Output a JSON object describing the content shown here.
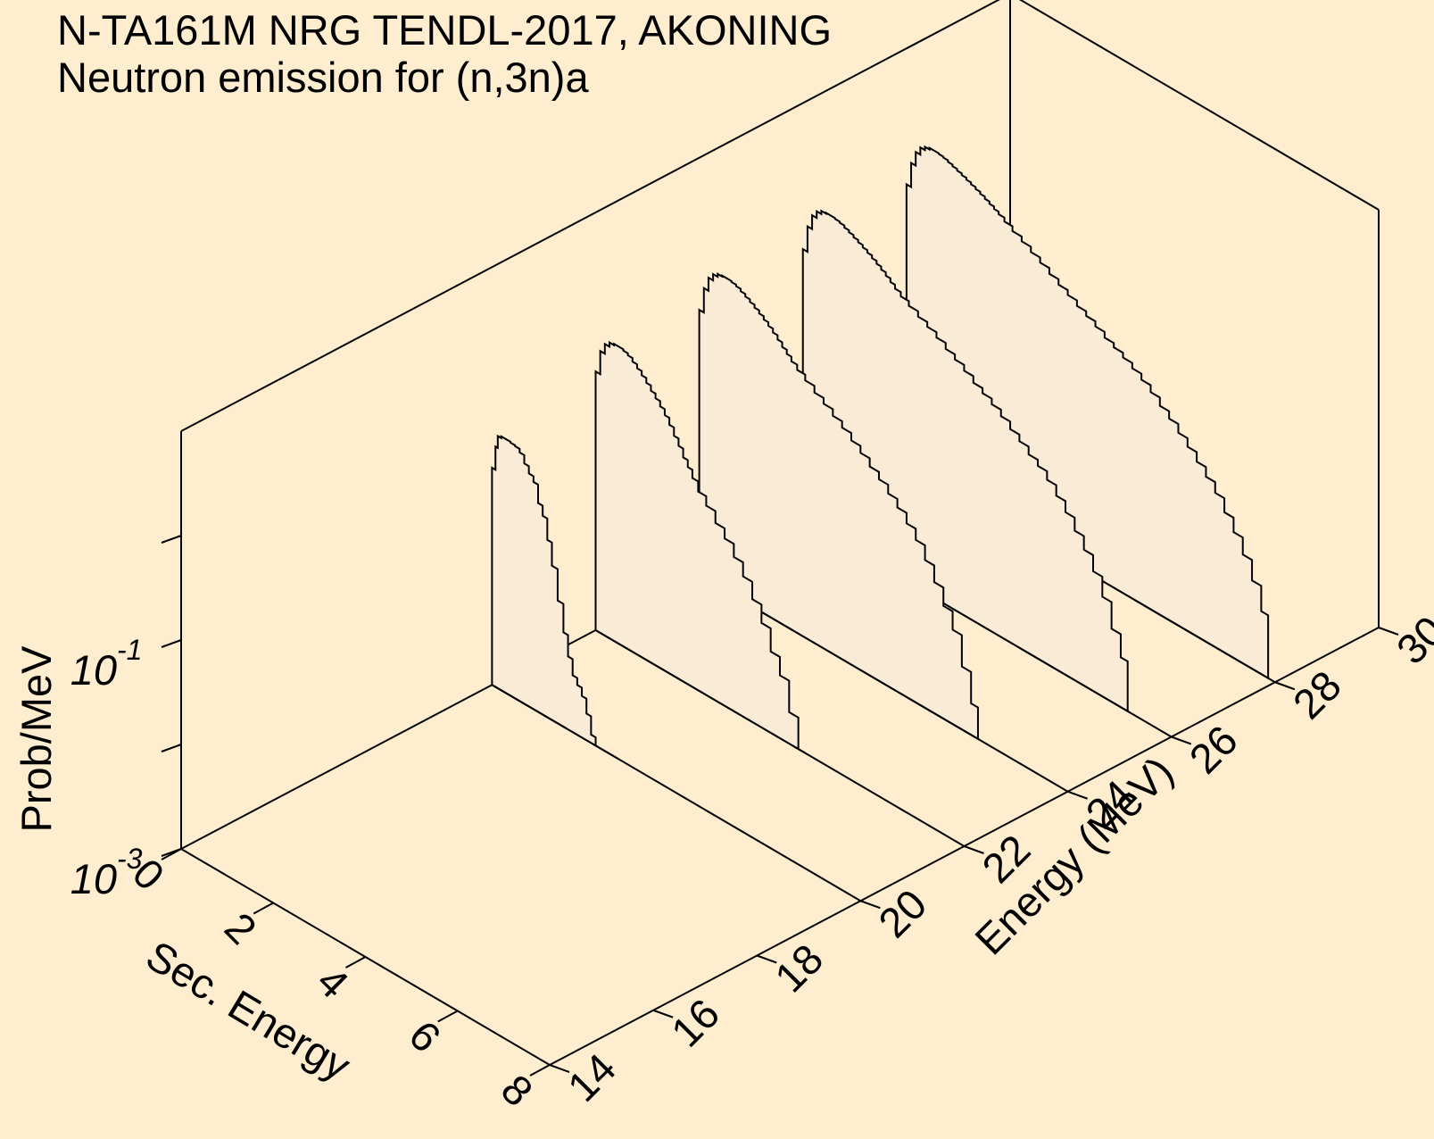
{
  "title": "N-TA161M NRG TENDL-2017, AKONING",
  "subtitle": "Neutron emission for (n,3n)a",
  "chart_data": {
    "type": "3d-waterfall",
    "title": "N-TA161M NRG TENDL-2017, AKONING",
    "subtitle": "Neutron emission for (n,3n)a",
    "xlabel": "Sec. Energy",
    "ylabel": "Energy (MeV)",
    "zlabel": "Prob/MeV",
    "xlim": [
      0,
      8
    ],
    "ylim": [
      14,
      30
    ],
    "zlim": [
      0.001,
      10
    ],
    "zscale": "log",
    "x_ticks": [
      "0",
      "2",
      "4",
      "6",
      "8"
    ],
    "y_ticks": [
      "14",
      "16",
      "18",
      "20",
      "22",
      "24",
      "26",
      "28",
      "30"
    ],
    "z_ticks": [
      {
        "base": "10",
        "exp": "-3",
        "value": 0.001
      },
      {
        "base": "10",
        "exp": "-1",
        "value": 0.1
      }
    ],
    "colors": {
      "background": "#ffedd0",
      "fill": "#faebd7",
      "line": "#000000"
    },
    "series": [
      {
        "incident_energy": 20,
        "x": [
          0.05,
          0.1,
          0.15,
          0.25,
          0.35,
          0.45,
          0.55,
          0.65,
          0.75,
          0.85,
          0.95,
          1.05,
          1.15,
          1.25,
          1.35,
          1.5,
          1.6,
          1.7,
          1.8,
          1.9,
          2.0,
          2.1,
          2.2,
          2.3,
          2.4,
          2.5,
          2.6,
          2.7
        ],
        "prob": [
          0.12,
          0.2,
          0.26,
          0.27,
          0.27,
          0.265,
          0.26,
          0.24,
          0.2,
          0.17,
          0.15,
          0.1,
          0.08,
          0.05,
          0.03,
          0.015,
          0.008,
          0.005,
          0.0035,
          0.003,
          0.0025,
          0.0018,
          0.0012,
          0.0008,
          0.0005,
          0.0003,
          0.0002,
          0.00012
        ]
      },
      {
        "incident_energy": 22,
        "x": [
          0.05,
          0.15,
          0.25,
          0.35,
          0.45,
          0.55,
          0.65,
          0.75,
          0.85,
          0.95,
          1.05,
          1.15,
          1.25,
          1.35,
          1.45,
          1.55,
          1.65,
          1.75,
          1.85,
          1.95,
          2.05,
          2.15,
          2.3,
          2.5,
          2.7,
          2.9,
          3.1,
          3.3,
          3.5,
          3.7,
          3.9,
          4.1,
          4.3,
          4.5
        ],
        "prob": [
          0.3,
          0.5,
          0.62,
          0.68,
          0.7,
          0.7,
          0.68,
          0.65,
          0.6,
          0.55,
          0.5,
          0.45,
          0.4,
          0.36,
          0.32,
          0.28,
          0.24,
          0.2,
          0.17,
          0.14,
          0.12,
          0.1,
          0.08,
          0.065,
          0.05,
          0.04,
          0.03,
          0.022,
          0.015,
          0.01,
          0.006,
          0.004,
          0.002,
          0.001
        ]
      },
      {
        "incident_energy": 24,
        "x": [
          0.05,
          0.15,
          0.25,
          0.35,
          0.45,
          0.55,
          0.65,
          0.75,
          0.85,
          0.95,
          1.05,
          1.15,
          1.25,
          1.35,
          1.45,
          1.55,
          1.65,
          1.75,
          1.85,
          1.95,
          2.05,
          2.2,
          2.4,
          2.6,
          2.8,
          3.0,
          3.2,
          3.4,
          3.6,
          3.8,
          4.0,
          4.2,
          4.4,
          4.6,
          4.8,
          5.0,
          5.2,
          5.4,
          5.6,
          5.8,
          6.0
        ],
        "prob": [
          0.35,
          0.6,
          0.8,
          0.92,
          0.98,
          1.0,
          1.0,
          0.98,
          0.95,
          0.9,
          0.85,
          0.8,
          0.75,
          0.7,
          0.65,
          0.6,
          0.55,
          0.5,
          0.45,
          0.41,
          0.37,
          0.33,
          0.29,
          0.25,
          0.22,
          0.19,
          0.165,
          0.14,
          0.12,
          0.1,
          0.085,
          0.07,
          0.058,
          0.046,
          0.036,
          0.026,
          0.018,
          0.012,
          0.008,
          0.004,
          0.002
        ]
      },
      {
        "incident_energy": 26,
        "x": [
          0.05,
          0.15,
          0.25,
          0.35,
          0.45,
          0.55,
          0.65,
          0.75,
          0.85,
          0.95,
          1.05,
          1.15,
          1.25,
          1.35,
          1.45,
          1.55,
          1.65,
          1.75,
          1.85,
          1.95,
          2.05,
          2.2,
          2.4,
          2.6,
          2.8,
          3.0,
          3.2,
          3.4,
          3.6,
          3.8,
          4.0,
          4.2,
          4.4,
          4.6,
          4.8,
          5.0,
          5.2,
          5.4,
          5.6,
          5.8,
          6.0,
          6.2,
          6.4,
          6.6,
          6.8,
          7.0
        ],
        "prob": [
          0.4,
          0.7,
          0.95,
          1.1,
          1.18,
          1.2,
          1.2,
          1.18,
          1.15,
          1.1,
          1.05,
          1.0,
          0.95,
          0.9,
          0.85,
          0.8,
          0.75,
          0.7,
          0.65,
          0.6,
          0.55,
          0.5,
          0.45,
          0.4,
          0.36,
          0.32,
          0.28,
          0.25,
          0.22,
          0.19,
          0.17,
          0.15,
          0.13,
          0.11,
          0.095,
          0.08,
          0.07,
          0.058,
          0.046,
          0.036,
          0.027,
          0.02,
          0.014,
          0.009,
          0.005,
          0.003
        ]
      },
      {
        "incident_energy": 28,
        "x": [
          0.05,
          0.15,
          0.25,
          0.35,
          0.45,
          0.55,
          0.65,
          0.75,
          0.85,
          0.95,
          1.05,
          1.15,
          1.25,
          1.35,
          1.45,
          1.55,
          1.65,
          1.75,
          1.85,
          1.95,
          2.05,
          2.2,
          2.4,
          2.6,
          2.8,
          3.0,
          3.2,
          3.4,
          3.6,
          3.8,
          4.0,
          4.2,
          4.4,
          4.6,
          4.8,
          5.0,
          5.2,
          5.4,
          5.6,
          5.8,
          6.0,
          6.2,
          6.4,
          6.6,
          6.8,
          7.0,
          7.2,
          7.4,
          7.6,
          7.8
        ],
        "prob": [
          0.5,
          0.85,
          1.15,
          1.35,
          1.45,
          1.5,
          1.5,
          1.48,
          1.45,
          1.4,
          1.35,
          1.3,
          1.25,
          1.2,
          1.15,
          1.1,
          1.05,
          1.0,
          0.95,
          0.9,
          0.85,
          0.78,
          0.7,
          0.63,
          0.56,
          0.5,
          0.44,
          0.39,
          0.35,
          0.31,
          0.28,
          0.25,
          0.22,
          0.2,
          0.18,
          0.16,
          0.14,
          0.12,
          0.1,
          0.085,
          0.07,
          0.058,
          0.047,
          0.038,
          0.03,
          0.022,
          0.016,
          0.011,
          0.007,
          0.004
        ]
      }
    ]
  }
}
